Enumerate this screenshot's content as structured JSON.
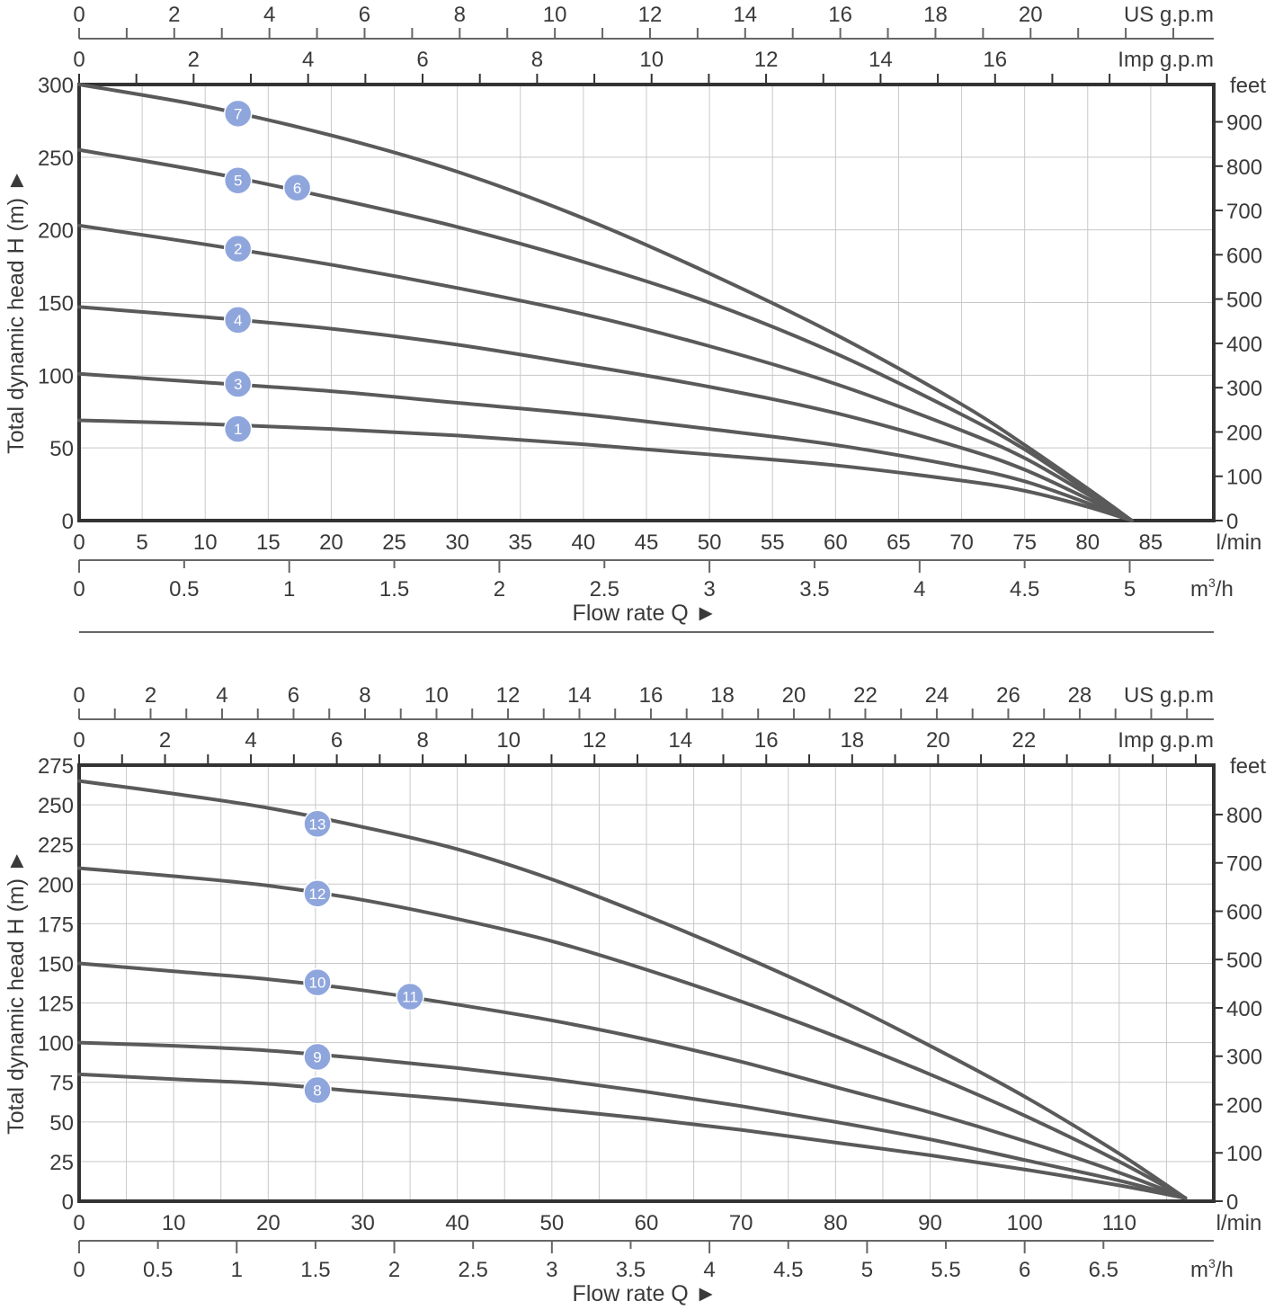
{
  "colors": {
    "curve": "#5a5a5a",
    "frame": "#333333",
    "grid": "#c8c8c8",
    "badge": "#8fa6dd",
    "badge_text": "#ffffff",
    "text": "#3a3a3a",
    "separator": "#666666"
  },
  "chart_data": [
    {
      "type": "line",
      "title": "",
      "xlabel": "Flow rate Q ►",
      "ylabel": "Total dynamic head H (m) ►",
      "x_unit": "l/min",
      "xlim": [
        0,
        90
      ],
      "x_ticks": [
        0,
        5,
        10,
        15,
        20,
        25,
        30,
        35,
        40,
        45,
        50,
        55,
        60,
        65,
        70,
        75,
        80,
        85
      ],
      "x_tick_labels": [
        "0",
        "5",
        "10",
        "15",
        "20",
        "25",
        "30",
        "35",
        "40",
        "45",
        "50",
        "55",
        "60",
        "65",
        "70",
        "75",
        "80",
        "85"
      ],
      "ylim": [
        0,
        300
      ],
      "y_ticks": [
        0,
        50,
        100,
        150,
        200,
        250,
        300
      ],
      "y_tick_labels": [
        "0",
        "50",
        "100",
        "150",
        "200",
        "250",
        "300"
      ],
      "feet_unit": "feet",
      "feet_ticks": [
        0,
        100,
        200,
        300,
        400,
        500,
        600,
        700,
        800,
        900
      ],
      "feet_tick_labels": [
        "0",
        "100",
        "200",
        "300",
        "400",
        "500",
        "600",
        "700",
        "800",
        "900"
      ],
      "us_unit": "US g.p.m",
      "us_ticks": [
        0,
        2,
        4,
        6,
        8,
        10,
        12,
        14,
        16,
        18,
        20
      ],
      "us_tick_labels": [
        "0",
        "2",
        "4",
        "6",
        "8",
        "10",
        "12",
        "14",
        "16",
        "18",
        "20"
      ],
      "imp_unit": "Imp g.p.m",
      "imp_ticks": [
        0,
        2,
        4,
        6,
        8,
        10,
        12,
        14,
        16
      ],
      "imp_tick_labels": [
        "0",
        "2",
        "4",
        "6",
        "8",
        "10",
        "12",
        "14",
        "16"
      ],
      "m3h_unit_base": "m",
      "m3h_unit_sup": "3",
      "m3h_unit_tail": "/h",
      "m3h_ticks": [
        0,
        0.5,
        1,
        1.5,
        2,
        2.5,
        3,
        3.5,
        4,
        4.5,
        5
      ],
      "m3h_tick_labels": [
        "0",
        "0.5",
        "1",
        "1.5",
        "2",
        "2.5",
        "3",
        "3.5",
        "4",
        "4.5",
        "5"
      ],
      "series": [
        {
          "name": "7",
          "x": [
            0,
            10,
            20,
            30,
            40,
            50,
            60,
            70,
            75,
            80,
            83.5
          ],
          "y": [
            300,
            285,
            265,
            240,
            208,
            170,
            128,
            80,
            52,
            22,
            0
          ],
          "label_pos": [
            12.6,
            280
          ]
        },
        {
          "name": "5",
          "x": [
            0,
            10,
            20,
            30,
            40,
            50,
            60,
            70,
            75,
            80,
            83.5
          ],
          "y": [
            255,
            240,
            222,
            202,
            178,
            150,
            115,
            73,
            49,
            20,
            0
          ],
          "label_pos": [
            12.6,
            234
          ]
        },
        {
          "name": "6",
          "x": [
            0,
            10,
            20,
            30,
            40,
            50,
            60,
            70,
            75,
            80,
            83.5
          ],
          "y": [
            255,
            240,
            222,
            202,
            178,
            150,
            115,
            73,
            49,
            20,
            0
          ],
          "label_pos": [
            17.3,
            229
          ]
        },
        {
          "name": "2",
          "x": [
            0,
            10,
            20,
            30,
            40,
            50,
            60,
            70,
            75,
            80,
            83.5
          ],
          "y": [
            203,
            190,
            176,
            160,
            142,
            120,
            94,
            62,
            43,
            18,
            0
          ],
          "label_pos": [
            12.6,
            187
          ]
        },
        {
          "name": "4",
          "x": [
            0,
            10,
            20,
            30,
            40,
            50,
            60,
            70,
            75,
            80,
            83.5
          ],
          "y": [
            147,
            140,
            132,
            121,
            107,
            92,
            74,
            50,
            35,
            15,
            0
          ],
          "label_pos": [
            12.6,
            138
          ]
        },
        {
          "name": "3",
          "x": [
            0,
            10,
            20,
            30,
            40,
            50,
            60,
            70,
            75,
            80,
            83.5
          ],
          "y": [
            101,
            95,
            89,
            81,
            73,
            63,
            52,
            37,
            27,
            12,
            0
          ],
          "label_pos": [
            12.6,
            94
          ]
        },
        {
          "name": "1",
          "x": [
            0,
            10,
            20,
            30,
            40,
            50,
            60,
            70,
            75,
            80,
            83.5
          ],
          "y": [
            69,
            66.5,
            63,
            58.5,
            52.5,
            45.5,
            38,
            27.5,
            20.5,
            9.5,
            0
          ],
          "label_pos": [
            12.6,
            63
          ]
        }
      ]
    },
    {
      "type": "line",
      "title": "",
      "xlabel": "Flow rate Q ►",
      "ylabel": "Total dynamic head H (m) ►",
      "x_unit": "l/min",
      "xlim": [
        0,
        120
      ],
      "x_ticks": [
        0,
        10,
        20,
        30,
        40,
        50,
        60,
        70,
        80,
        90,
        100,
        110
      ],
      "x_tick_labels": [
        "0",
        "10",
        "20",
        "30",
        "40",
        "50",
        "60",
        "70",
        "80",
        "90",
        "100",
        "110"
      ],
      "ylim": [
        0,
        275
      ],
      "y_ticks": [
        0,
        25,
        50,
        75,
        100,
        125,
        150,
        175,
        200,
        225,
        250,
        275
      ],
      "y_tick_labels": [
        "0",
        "25",
        "50",
        "75",
        "100",
        "125",
        "150",
        "175",
        "200",
        "225",
        "250",
        "275"
      ],
      "feet_unit": "feet",
      "feet_ticks": [
        0,
        100,
        200,
        300,
        400,
        500,
        600,
        700,
        800
      ],
      "feet_tick_labels": [
        "0",
        "100",
        "200",
        "300",
        "400",
        "500",
        "600",
        "700",
        "800"
      ],
      "us_unit": "US g.p.m",
      "us_ticks": [
        0,
        2,
        4,
        6,
        8,
        10,
        12,
        14,
        16,
        18,
        20,
        22,
        24,
        26,
        28
      ],
      "us_tick_labels": [
        "0",
        "2",
        "4",
        "6",
        "8",
        "10",
        "12",
        "14",
        "16",
        "18",
        "20",
        "22",
        "24",
        "26",
        "28"
      ],
      "imp_unit": "Imp g.p.m",
      "imp_ticks": [
        0,
        2,
        4,
        6,
        8,
        10,
        12,
        14,
        16,
        18,
        20,
        22
      ],
      "imp_tick_labels": [
        "0",
        "2",
        "4",
        "6",
        "8",
        "10",
        "12",
        "14",
        "16",
        "18",
        "20",
        "22"
      ],
      "m3h_unit_base": "m",
      "m3h_unit_sup": "3",
      "m3h_unit_tail": "/h",
      "m3h_ticks": [
        0,
        0.5,
        1,
        1.5,
        2,
        2.5,
        3,
        3.5,
        4,
        4.5,
        5,
        5.5,
        6,
        6.5
      ],
      "m3h_tick_labels": [
        "0",
        "0.5",
        "1",
        "1.5",
        "2",
        "2.5",
        "3",
        "3.5",
        "4",
        "4.5",
        "5",
        "5.5",
        "6",
        "6.5"
      ],
      "series": [
        {
          "name": "13",
          "x": [
            0,
            10,
            20,
            30,
            40,
            50,
            60,
            70,
            80,
            90,
            100,
            110,
            117
          ],
          "y": [
            265,
            257,
            248,
            236,
            222,
            203,
            180,
            155,
            128,
            98,
            66,
            30,
            2
          ],
          "label_pos": [
            25.2,
            238
          ]
        },
        {
          "name": "12",
          "x": [
            0,
            10,
            20,
            30,
            40,
            50,
            60,
            70,
            80,
            90,
            100,
            110,
            117
          ],
          "y": [
            210,
            205,
            199,
            190,
            178,
            164,
            146,
            126,
            104,
            80,
            54,
            25,
            2
          ],
          "label_pos": [
            25.2,
            194
          ]
        },
        {
          "name": "10",
          "x": [
            0,
            10,
            20,
            30,
            40,
            50,
            60,
            70,
            80,
            90,
            100,
            110,
            117
          ],
          "y": [
            150,
            145,
            140,
            133,
            124,
            114,
            102,
            88,
            72,
            56,
            38,
            18,
            2
          ],
          "label_pos": [
            25.2,
            138
          ]
        },
        {
          "name": "11",
          "x": [
            0,
            10,
            20,
            30,
            40,
            50,
            60,
            70,
            80,
            90,
            100,
            110,
            117
          ],
          "y": [
            150,
            145,
            140,
            133,
            124,
            114,
            102,
            88,
            72,
            56,
            38,
            18,
            2
          ],
          "label_pos": [
            35.0,
            129
          ]
        },
        {
          "name": "9",
          "x": [
            0,
            10,
            20,
            30,
            40,
            50,
            60,
            70,
            80,
            90,
            100,
            110,
            117
          ],
          "y": [
            100,
            98,
            95,
            90,
            84,
            77,
            69,
            60,
            50,
            39,
            26,
            13,
            2
          ],
          "label_pos": [
            25.2,
            91
          ]
        },
        {
          "name": "8",
          "x": [
            0,
            10,
            20,
            30,
            40,
            50,
            60,
            70,
            80,
            90,
            100,
            110,
            117
          ],
          "y": [
            80,
            77,
            74,
            69,
            64,
            58,
            52,
            45,
            37,
            29,
            20,
            10,
            2
          ],
          "label_pos": [
            25.2,
            70
          ]
        }
      ]
    }
  ]
}
